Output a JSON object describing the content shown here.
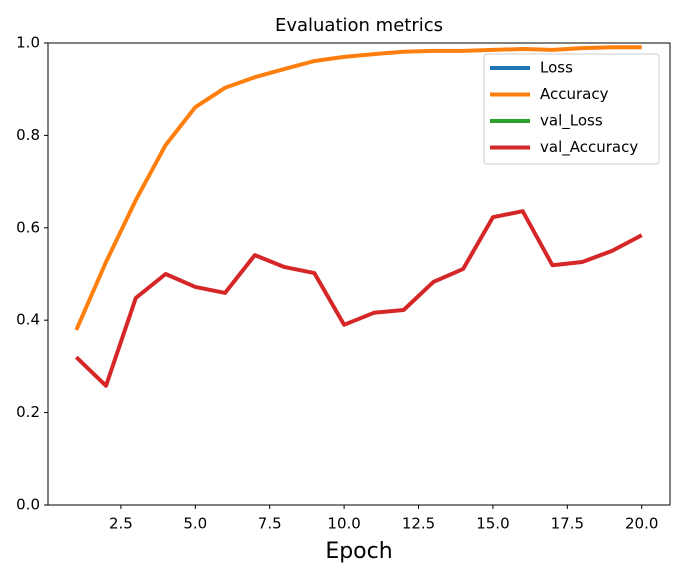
{
  "chart_data": {
    "type": "line",
    "title": "Evaluation metrics",
    "x_label": "Epoch",
    "x": [
      1,
      2,
      3,
      4,
      5,
      6,
      7,
      8,
      9,
      10,
      11,
      12,
      13,
      14,
      15,
      16,
      17,
      18,
      19,
      20
    ],
    "series": [
      {
        "name": "Loss",
        "color": "#1f77b4",
        "values": [
          null,
          null,
          null,
          null,
          null,
          null,
          null,
          null,
          null,
          null,
          null,
          null,
          null,
          null,
          null,
          null,
          null,
          null,
          null,
          null
        ]
      },
      {
        "name": "Accuracy",
        "color": "#ff7f0e",
        "values": [
          0.379,
          0.526,
          0.66,
          0.779,
          0.861,
          0.903,
          0.926,
          0.944,
          0.961,
          0.97,
          0.976,
          0.981,
          0.983,
          0.983,
          0.985,
          0.987,
          0.985,
          0.989,
          0.991,
          0.991
        ]
      },
      {
        "name": "val_Loss",
        "color": "#2ca02c",
        "values": [
          null,
          null,
          null,
          null,
          null,
          null,
          null,
          null,
          null,
          null,
          null,
          null,
          null,
          null,
          null,
          null,
          null,
          null,
          null,
          null
        ]
      },
      {
        "name": "val_Accuracy",
        "color": "#d62728",
        "values": [
          0.32,
          0.258,
          0.448,
          0.5,
          0.472,
          0.459,
          0.541,
          0.515,
          0.502,
          0.39,
          0.416,
          0.422,
          0.483,
          0.511,
          0.623,
          0.636,
          0.519,
          0.526,
          0.55,
          0.584
        ]
      }
    ],
    "xlim": [
      0.05,
      20.95
    ],
    "xticks": [
      2.5,
      {
        "value": 5,
        "label": "5.0"
      },
      7.5,
      {
        "value": 10,
        "label": "10.0"
      },
      12.5,
      {
        "value": 15,
        "label": "15.0"
      },
      17.5,
      {
        "value": 20,
        "label": "20.0"
      }
    ],
    "ylim": [
      0,
      1
    ],
    "yticks": [
      {
        "value": 0,
        "label": "0.0"
      },
      0.2,
      0.4,
      0.6,
      0.8,
      {
        "value": 1,
        "label": "1.0"
      }
    ],
    "legend": "upper right"
  }
}
